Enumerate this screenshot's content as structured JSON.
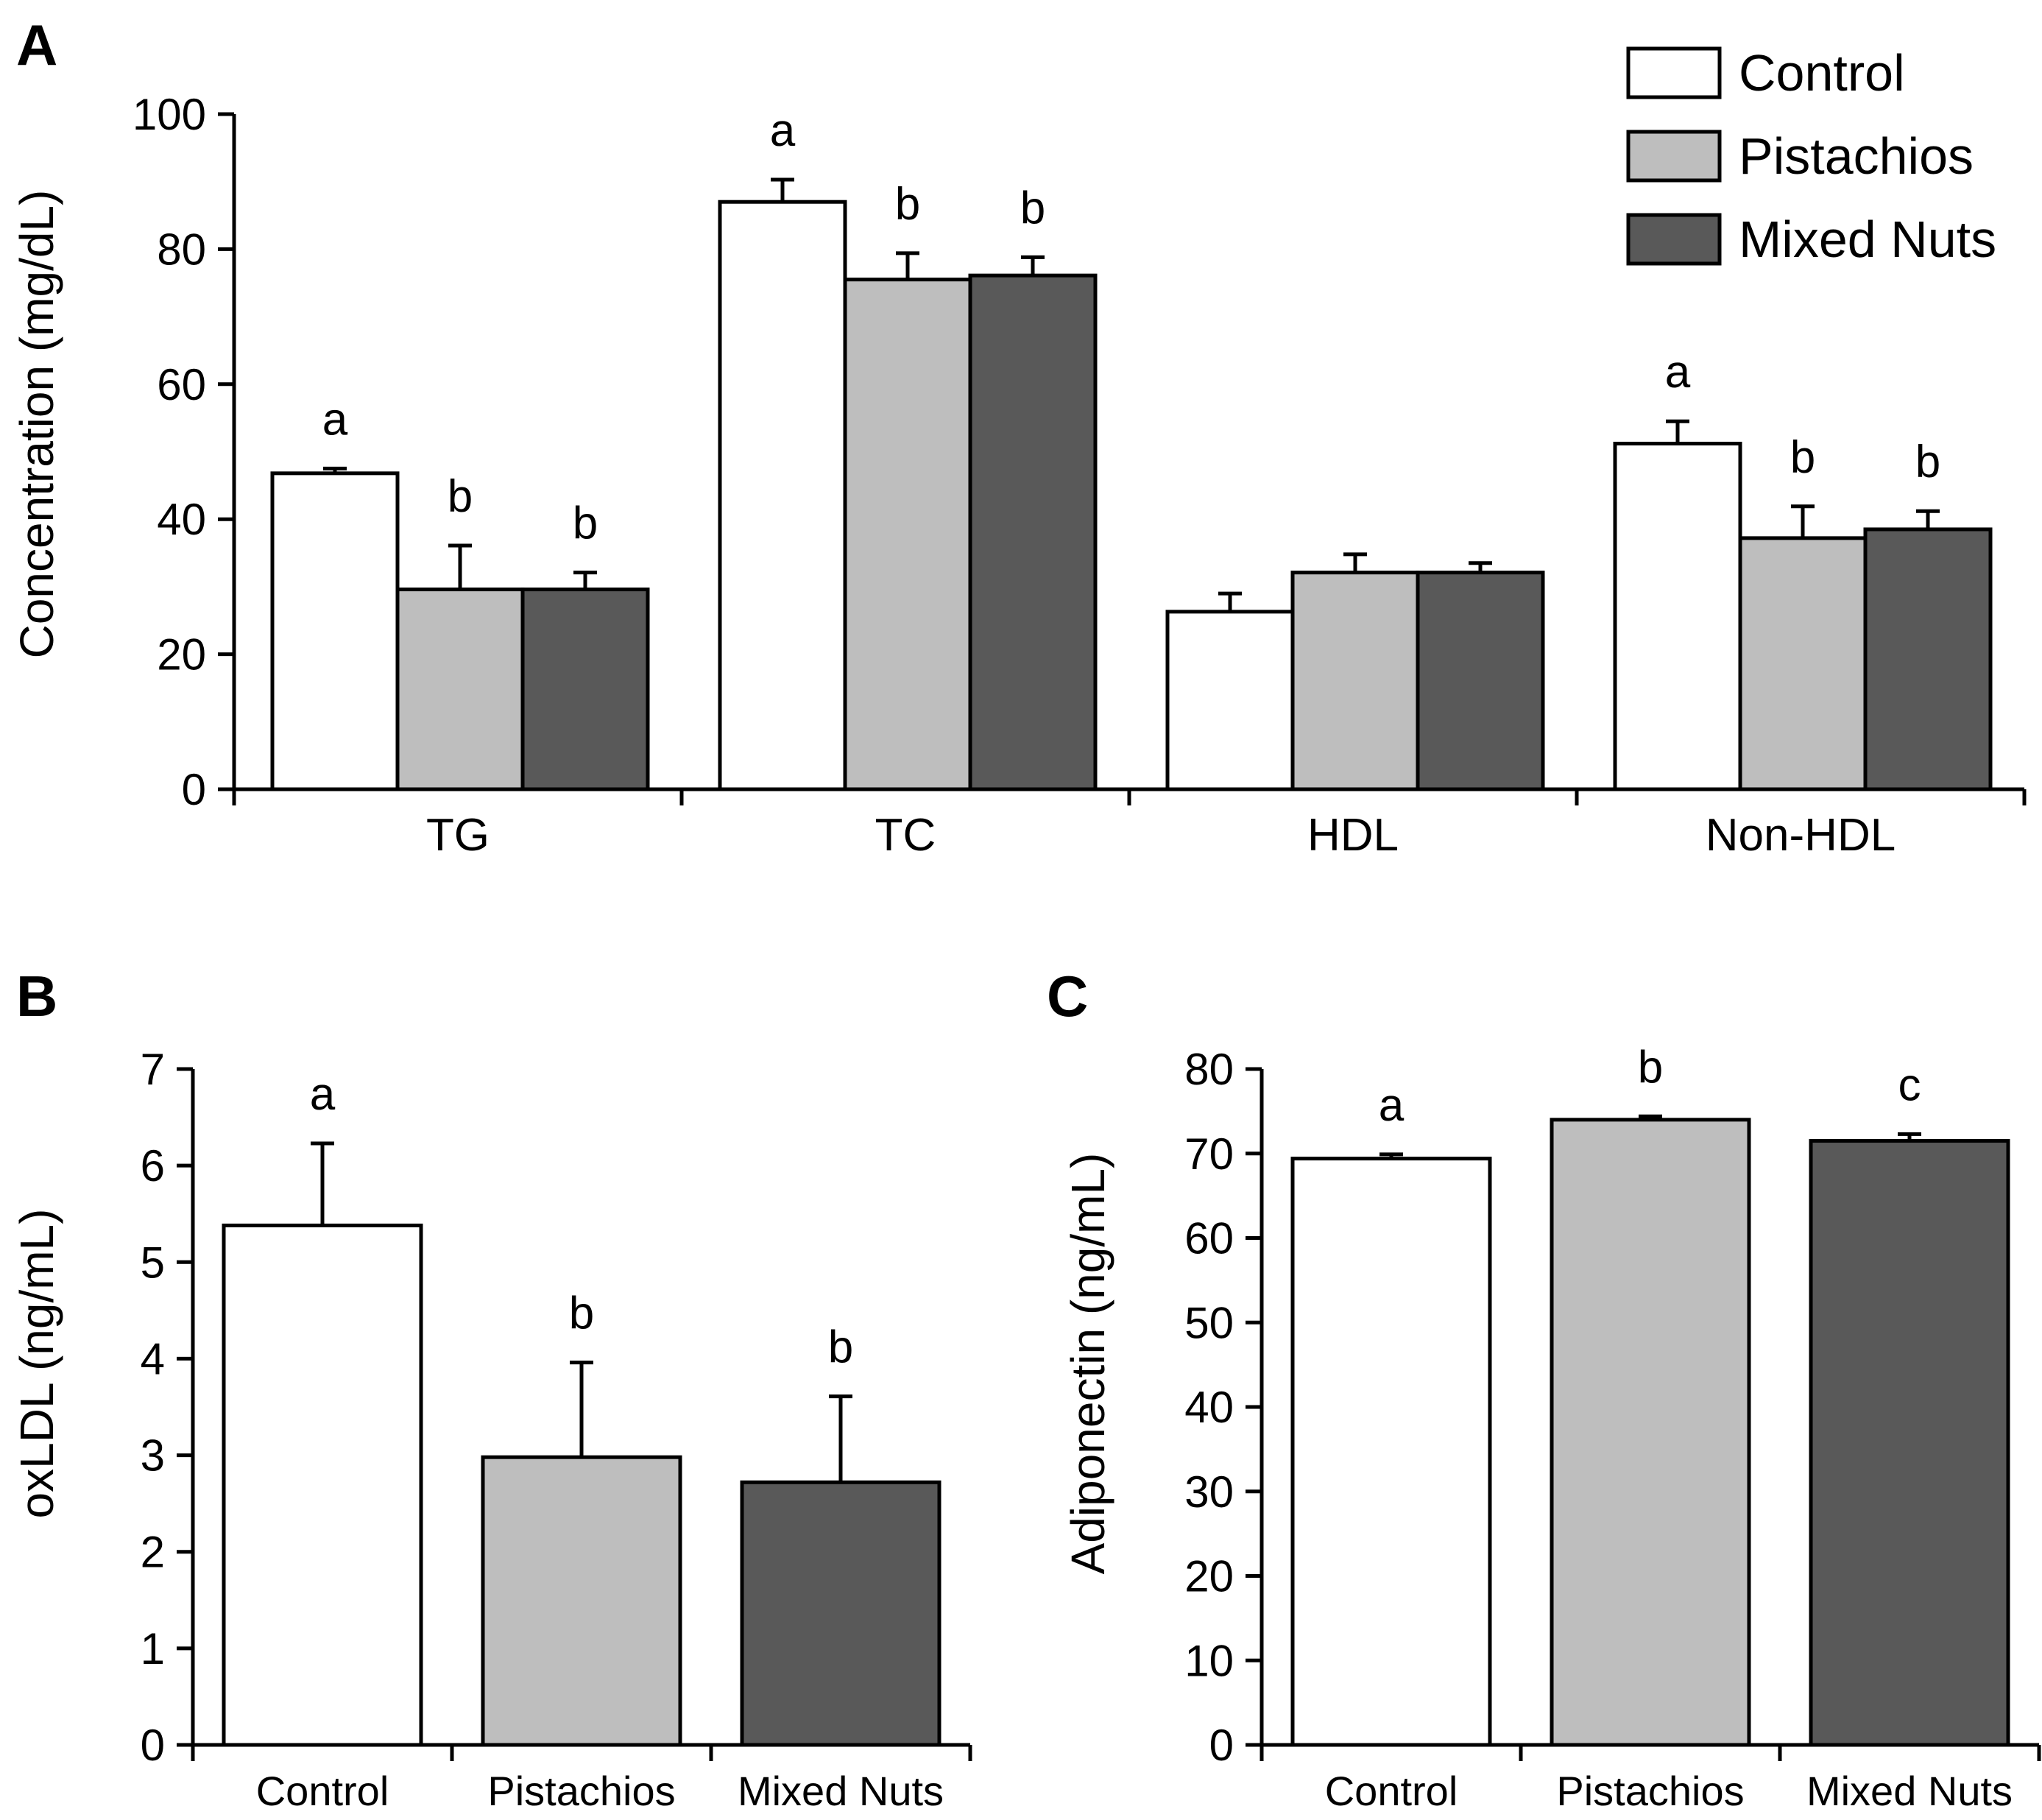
{
  "colors": {
    "Control": "#ffffff",
    "Pistachios": "#bebebe",
    "Mixed Nuts": "#595959",
    "stroke": "#000000"
  },
  "legend": [
    "Control",
    "Pistachios",
    "Mixed Nuts"
  ],
  "chart_data": [
    {
      "panel": "A",
      "type": "bar",
      "ylabel": "Concentration (mg/dL)",
      "ylim": [
        0,
        100
      ],
      "yticks": [
        0,
        20,
        40,
        60,
        80,
        100
      ],
      "categories": [
        "TG",
        "TC",
        "HDL",
        "Non-HDL"
      ],
      "series": [
        {
          "name": "Control",
          "values": [
            46.8,
            87.0,
            26.3,
            51.2
          ],
          "errors": [
            0.7,
            3.3,
            2.7,
            3.3
          ],
          "sig": [
            "a",
            "a",
            "",
            "a"
          ]
        },
        {
          "name": "Pistachios",
          "values": [
            29.6,
            75.5,
            32.1,
            37.2
          ],
          "errors": [
            6.5,
            3.9,
            2.7,
            4.7
          ],
          "sig": [
            "b",
            "b",
            "",
            "b"
          ]
        },
        {
          "name": "Mixed Nuts",
          "values": [
            29.6,
            76.1,
            32.1,
            38.5
          ],
          "errors": [
            2.5,
            2.7,
            1.4,
            2.7
          ],
          "sig": [
            "b",
            "b",
            "",
            "b"
          ]
        }
      ]
    },
    {
      "panel": "B",
      "type": "bar",
      "ylabel": "oxLDL (ng/mL)",
      "ylim": [
        0,
        7
      ],
      "yticks": [
        0,
        1,
        2,
        3,
        4,
        5,
        6,
        7
      ],
      "categories": [
        "Control",
        "Pistachios",
        "Mixed Nuts"
      ],
      "values": [
        5.38,
        2.98,
        2.72
      ],
      "errors": [
        0.85,
        0.98,
        0.89
      ],
      "sig": [
        "a",
        "b",
        "b"
      ]
    },
    {
      "panel": "C",
      "type": "bar",
      "ylabel": "Adiponectin (ng/mL)",
      "ylim": [
        0,
        80
      ],
      "yticks": [
        0,
        10,
        20,
        30,
        40,
        50,
        60,
        70,
        80
      ],
      "categories": [
        "Control",
        "Pistachios",
        "Mixed Nuts"
      ],
      "values": [
        69.4,
        74.0,
        71.5
      ],
      "errors": [
        0.5,
        0.4,
        0.8
      ],
      "sig": [
        "a",
        "b",
        "c"
      ]
    }
  ]
}
